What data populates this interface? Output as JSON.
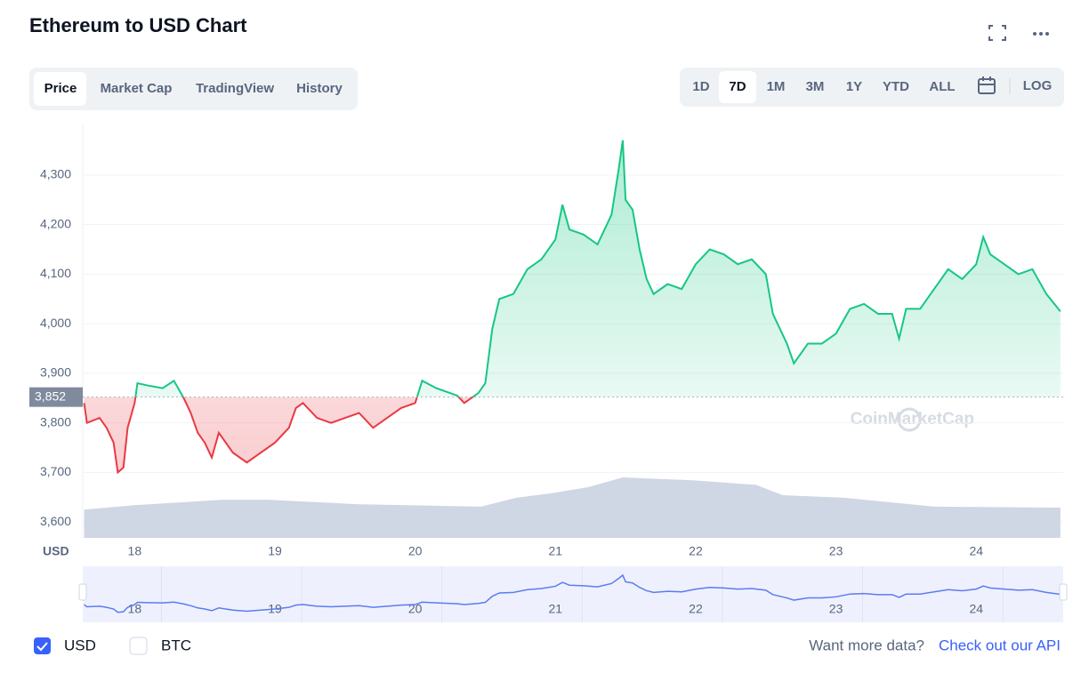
{
  "title": "Ethereum to USD Chart",
  "tabs": [
    "Price",
    "Market Cap",
    "TradingView",
    "History"
  ],
  "ranges": [
    "1D",
    "7D",
    "1M",
    "3M",
    "1Y",
    "YTD",
    "ALL"
  ],
  "log": "LOG",
  "watermark": "CoinMarketCap",
  "currencies": [
    "USD",
    "BTC"
  ],
  "footer": {
    "text": "Want more data?",
    "link": "Check out our API"
  },
  "chart_data": {
    "type": "line",
    "x_unit": "USD",
    "up_color": "#16c784",
    "down_color": "#ea3943",
    "reference": {
      "value": 3852,
      "label": "3,852"
    },
    "xlim": [
      17.63,
      24.62
    ],
    "xticks": [
      18,
      19,
      20,
      21,
      22,
      23,
      24
    ],
    "ylim": [
      3568,
      4402
    ],
    "yticks": [
      {
        "value": 3600,
        "label": "3,600"
      },
      {
        "value": 3700,
        "label": "3,700"
      },
      {
        "value": 3800,
        "label": "3,800"
      },
      {
        "value": 3900,
        "label": "3,900"
      },
      {
        "value": 4000,
        "label": "4,000"
      },
      {
        "value": 4100,
        "label": "4,100"
      },
      {
        "value": 4200,
        "label": "4,200"
      },
      {
        "value": 4300,
        "label": "4,300"
      }
    ],
    "grid": true,
    "x": [
      17.64,
      17.66,
      17.75,
      17.8,
      17.85,
      17.88,
      17.92,
      17.95,
      18.0,
      18.02,
      18.1,
      18.2,
      18.28,
      18.35,
      18.4,
      18.45,
      18.5,
      18.55,
      18.6,
      18.7,
      18.8,
      18.9,
      19.0,
      19.1,
      19.15,
      19.2,
      19.3,
      19.4,
      19.5,
      19.6,
      19.7,
      19.8,
      19.9,
      20.0,
      20.05,
      20.15,
      20.3,
      20.35,
      20.45,
      20.5,
      20.55,
      20.6,
      20.7,
      20.8,
      20.9,
      21.0,
      21.05,
      21.1,
      21.2,
      21.3,
      21.4,
      21.45,
      21.48,
      21.5,
      21.55,
      21.6,
      21.65,
      21.7,
      21.8,
      21.9,
      22.0,
      22.1,
      22.2,
      22.3,
      22.4,
      22.5,
      22.55,
      22.65,
      22.7,
      22.8,
      22.9,
      23.0,
      23.1,
      23.2,
      23.3,
      23.4,
      23.45,
      23.5,
      23.6,
      23.7,
      23.8,
      23.9,
      24.0,
      24.05,
      24.1,
      24.2,
      24.3,
      24.4,
      24.5,
      24.6
    ],
    "values": [
      3840,
      3800,
      3810,
      3790,
      3760,
      3700,
      3710,
      3790,
      3840,
      3880,
      3875,
      3870,
      3885,
      3850,
      3820,
      3780,
      3760,
      3730,
      3780,
      3740,
      3720,
      3740,
      3760,
      3790,
      3830,
      3840,
      3810,
      3800,
      3810,
      3820,
      3790,
      3810,
      3830,
      3840,
      3885,
      3870,
      3855,
      3840,
      3860,
      3880,
      3990,
      4050,
      4060,
      4110,
      4130,
      4170,
      4240,
      4190,
      4180,
      4160,
      4220,
      4310,
      4370,
      4250,
      4230,
      4150,
      4090,
      4060,
      4080,
      4070,
      4120,
      4150,
      4140,
      4120,
      4130,
      4100,
      4020,
      3960,
      3920,
      3960,
      3960,
      3980,
      4030,
      4040,
      4020,
      4020,
      3970,
      4030,
      4030,
      4070,
      4110,
      4090,
      4120,
      4175,
      4140,
      4120,
      4100,
      4110,
      4060,
      4025
    ],
    "volume": {
      "color": "#cfd6e4",
      "x": [
        17.64,
        18.0,
        18.63,
        18.95,
        19.58,
        20.47,
        20.72,
        20.97,
        21.23,
        21.48,
        21.99,
        22.43,
        22.62,
        23.06,
        23.7,
        24.6
      ],
      "values": [
        3625,
        3634,
        3645,
        3645,
        3636,
        3631,
        3649,
        3658,
        3670,
        3690,
        3684,
        3675,
        3654,
        3649,
        3631,
        3629
      ]
    }
  }
}
